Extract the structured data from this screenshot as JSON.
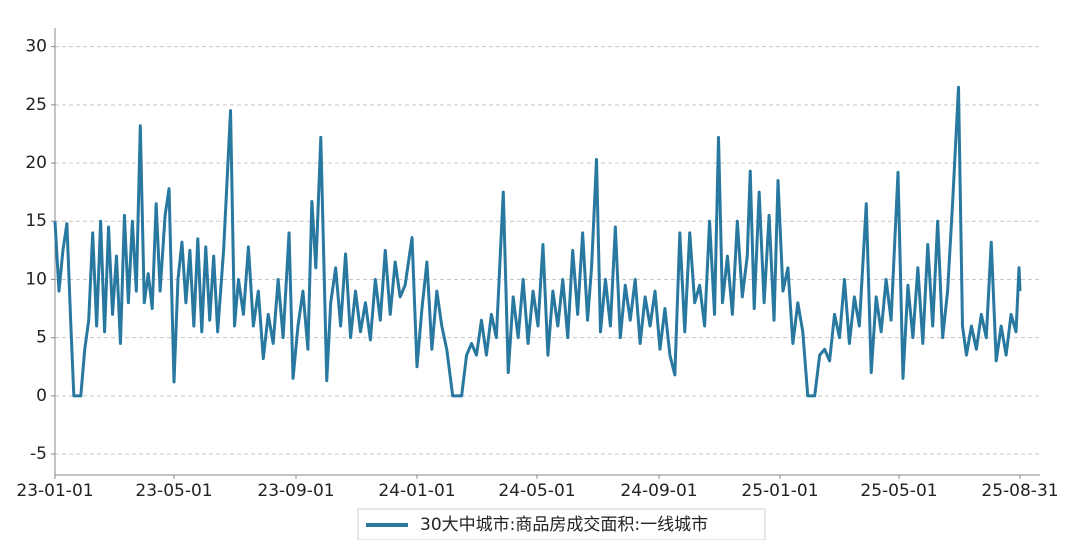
{
  "chart_data": {
    "type": "line",
    "x": [
      "23-01-01",
      "23-01-05",
      "23-01-09",
      "23-01-13",
      "23-01-17",
      "23-01-20",
      "23-01-27",
      "23-01-31",
      "23-02-04",
      "23-02-08",
      "23-02-12",
      "23-02-16",
      "23-02-20",
      "23-02-24",
      "23-02-28",
      "23-03-04",
      "23-03-08",
      "23-03-12",
      "23-03-16",
      "23-03-20",
      "23-03-24",
      "23-03-28",
      "23-04-01",
      "23-04-05",
      "23-04-09",
      "23-04-13",
      "23-04-17",
      "23-04-22",
      "23-04-26",
      "23-05-01",
      "23-05-05",
      "23-05-09",
      "23-05-13",
      "23-05-17",
      "23-05-21",
      "23-05-25",
      "23-05-29",
      "23-06-02",
      "23-06-06",
      "23-06-10",
      "23-06-14",
      "23-06-20",
      "23-06-27",
      "23-07-01",
      "23-07-05",
      "23-07-10",
      "23-07-15",
      "23-07-20",
      "23-07-25",
      "23-07-30",
      "23-08-04",
      "23-08-09",
      "23-08-14",
      "23-08-19",
      "23-08-25",
      "23-08-29",
      "23-09-03",
      "23-09-08",
      "23-09-13",
      "23-09-17",
      "23-09-21",
      "23-09-26",
      "23-10-02",
      "23-10-06",
      "23-10-11",
      "23-10-16",
      "23-10-21",
      "23-10-26",
      "23-10-31",
      "23-11-05",
      "23-11-10",
      "23-11-15",
      "23-11-20",
      "23-11-25",
      "23-11-30",
      "23-12-05",
      "23-12-10",
      "23-12-15",
      "23-12-20",
      "23-12-27",
      "24-01-01",
      "24-01-06",
      "24-01-11",
      "24-01-16",
      "24-01-21",
      "24-01-26",
      "24-01-31",
      "24-02-06",
      "24-02-15",
      "24-02-20",
      "24-02-25",
      "24-03-01",
      "24-03-06",
      "24-03-11",
      "24-03-16",
      "24-03-21",
      "24-03-28",
      "24-04-02",
      "24-04-07",
      "24-04-12",
      "24-04-17",
      "24-04-22",
      "24-04-27",
      "24-05-02",
      "24-05-07",
      "24-05-12",
      "24-05-17",
      "24-05-22",
      "24-05-27",
      "24-06-01",
      "24-06-06",
      "24-06-11",
      "24-06-16",
      "24-06-21",
      "24-06-25",
      "24-06-30",
      "24-07-04",
      "24-07-09",
      "24-07-14",
      "24-07-19",
      "24-07-24",
      "24-07-29",
      "24-08-03",
      "24-08-08",
      "24-08-13",
      "24-08-18",
      "24-08-23",
      "24-08-28",
      "24-09-02",
      "24-09-07",
      "24-09-12",
      "24-09-17",
      "24-09-22",
      "24-09-27",
      "24-10-02",
      "24-10-07",
      "24-10-12",
      "24-10-17",
      "24-10-22",
      "24-10-27",
      "24-10-31",
      "24-11-04",
      "24-11-09",
      "24-11-14",
      "24-11-19",
      "24-11-24",
      "24-11-29",
      "24-12-02",
      "24-12-06",
      "24-12-11",
      "24-12-16",
      "24-12-21",
      "24-12-26",
      "24-12-30",
      "25-01-04",
      "25-01-09",
      "25-01-14",
      "25-01-19",
      "25-01-24",
      "25-01-29",
      "25-02-05",
      "25-02-10",
      "25-02-15",
      "25-02-20",
      "25-02-25",
      "25-03-02",
      "25-03-07",
      "25-03-12",
      "25-03-17",
      "25-03-22",
      "25-03-29",
      "25-04-03",
      "25-04-08",
      "25-04-13",
      "25-04-18",
      "25-04-23",
      "25-04-30",
      "25-05-05",
      "25-05-10",
      "25-05-15",
      "25-05-20",
      "25-05-25",
      "25-05-30",
      "25-06-04",
      "25-06-09",
      "25-06-14",
      "25-06-19",
      "25-06-24",
      "25-06-30",
      "25-07-04",
      "25-07-08",
      "25-07-13",
      "25-07-18",
      "25-07-23",
      "25-07-28",
      "25-08-02",
      "25-08-07",
      "25-08-12",
      "25-08-17",
      "25-08-22",
      "25-08-27",
      "25-08-30",
      "25-08-31"
    ],
    "series": [
      {
        "name": "30大中城市:商品房成交面积:一线城市",
        "color": "#2878a0",
        "values": [
          15,
          9,
          12.5,
          14.8,
          6,
          0,
          0,
          4,
          6.5,
          14,
          6,
          15,
          5.5,
          14.5,
          7,
          12,
          4.5,
          15.5,
          8,
          15,
          9,
          23.2,
          8,
          10.5,
          7.5,
          16.5,
          9,
          15.5,
          17.8,
          1.2,
          10,
          13.2,
          8,
          12.5,
          6,
          13.5,
          5.5,
          12.8,
          6.5,
          12,
          5.5,
          12.5,
          24.5,
          6,
          10,
          7,
          12.8,
          6,
          9,
          3.2,
          7,
          4.5,
          10,
          5,
          14,
          1.5,
          6,
          9,
          4,
          16.7,
          11,
          22.2,
          1.3,
          8,
          11,
          6,
          12.2,
          5,
          9,
          5.5,
          8,
          4.8,
          10,
          6.5,
          12.5,
          7,
          11.5,
          8.5,
          9.5,
          13.6,
          2.5,
          7.5,
          11.5,
          4,
          9,
          6,
          4,
          0,
          0,
          3.5,
          4.5,
          3.5,
          6.5,
          3.5,
          7,
          5,
          17.5,
          2,
          8.5,
          5,
          10,
          4.5,
          9,
          6,
          13,
          3.5,
          9,
          6,
          10,
          5,
          12.5,
          7,
          14,
          6.5,
          11,
          20.3,
          5.5,
          10,
          6,
          14.5,
          5,
          9.5,
          6.5,
          10,
          4.5,
          8.5,
          6,
          9,
          4,
          7.5,
          3.5,
          1.8,
          14,
          5.5,
          14,
          8,
          9.5,
          6,
          15,
          7,
          22.2,
          8,
          12,
          7,
          15,
          8.5,
          12,
          19.3,
          7.5,
          17.5,
          8,
          15.5,
          6.5,
          18.5,
          9,
          11,
          4.5,
          8,
          5.5,
          0,
          0,
          3.5,
          4,
          3,
          7,
          5,
          10,
          4.5,
          8.5,
          6,
          16.5,
          2,
          8.5,
          5.5,
          10,
          6.5,
          19.2,
          1.5,
          9.5,
          5,
          11,
          4.5,
          13,
          6,
          15,
          5,
          9,
          16.5,
          26.5,
          6,
          3.5,
          6,
          4,
          7,
          5,
          13.2,
          3,
          6,
          3.5,
          7,
          5.5,
          11,
          9
        ]
      }
    ],
    "xlim": [
      "23-01-01",
      "25-08-31"
    ],
    "xticks": [
      "23-01-01",
      "23-05-01",
      "23-09-01",
      "24-01-01",
      "24-05-01",
      "24-09-01",
      "25-01-01",
      "25-05-01",
      "25-08-31"
    ],
    "ylim": [
      -6.8,
      31.6
    ],
    "yticks": [
      -5,
      0,
      5,
      10,
      15,
      20,
      25,
      30
    ],
    "grid": true,
    "legend": "bottom"
  }
}
